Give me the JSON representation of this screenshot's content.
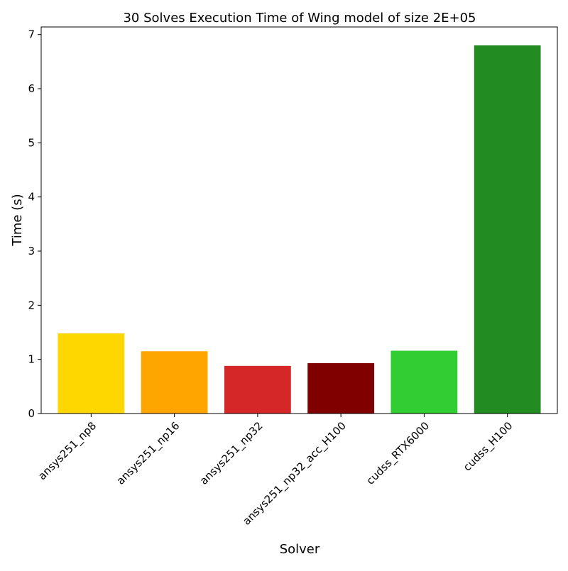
{
  "chart_data": {
    "type": "bar",
    "title": "30 Solves Execution Time of Wing model of size 2E+05",
    "xlabel": "Solver",
    "ylabel": "Time (s)",
    "categories": [
      "ansys251_np8",
      "ansys251_np16",
      "ansys251_np32",
      "ansys251_np32_acc_H100",
      "cudss_RTX6000",
      "cudss_H100"
    ],
    "values": [
      1.48,
      1.15,
      0.88,
      0.93,
      1.16,
      6.8
    ],
    "colors": [
      "#ffd700",
      "#ffa500",
      "#d62728",
      "#800000",
      "#32cd32",
      "#228b22"
    ],
    "ylim": [
      0,
      7.14
    ],
    "yticks": [
      0,
      1,
      2,
      3,
      4,
      5,
      6,
      7
    ],
    "grid": false,
    "legend": "none"
  }
}
